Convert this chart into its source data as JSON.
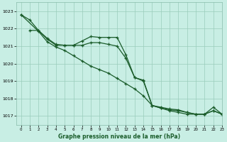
{
  "xlabel": "Graphe pression niveau de la mer (hPa)",
  "ylim": [
    1016.5,
    1023.5
  ],
  "xlim": [
    -0.5,
    23
  ],
  "yticks": [
    1017,
    1018,
    1019,
    1020,
    1021,
    1022,
    1023
  ],
  "xticks": [
    0,
    1,
    2,
    3,
    4,
    5,
    6,
    7,
    8,
    9,
    10,
    11,
    12,
    13,
    14,
    15,
    16,
    17,
    18,
    19,
    20,
    21,
    22,
    23
  ],
  "bg_color": "#c8eee4",
  "grid_color": "#99ccbb",
  "line_color": "#1a5c2a",
  "line1_x": [
    0,
    1,
    2,
    3,
    4,
    5,
    6,
    7,
    8,
    9,
    10,
    11,
    12,
    13,
    14,
    15,
    16,
    17,
    18,
    19,
    20,
    21,
    22,
    23
  ],
  "line1_y": [
    1022.8,
    1022.5,
    1021.9,
    1021.4,
    1021.05,
    1021.05,
    1021.05,
    1021.05,
    1021.2,
    1021.2,
    1021.1,
    1021.0,
    1020.3,
    1019.2,
    1019.0,
    1017.6,
    1017.45,
    1017.35,
    1017.3,
    1017.2,
    1017.1,
    1017.1,
    1017.3,
    1017.1
  ],
  "line2_x": [
    1,
    2,
    3,
    4,
    5,
    6,
    7,
    8,
    9,
    10,
    11,
    12,
    13,
    14,
    15,
    16,
    17,
    18,
    19,
    20,
    21,
    22,
    23
  ],
  "line2_y": [
    1021.9,
    1021.9,
    1021.45,
    1021.1,
    1021.05,
    1021.05,
    1021.3,
    1021.55,
    1021.5,
    1021.5,
    1021.5,
    1020.5,
    1019.2,
    1019.05,
    1017.6,
    1017.5,
    1017.4,
    1017.35,
    1017.2,
    1017.1,
    1017.1,
    1017.5,
    1017.1
  ],
  "line3_x": [
    0,
    2,
    3,
    4,
    5,
    6,
    7,
    8,
    9,
    10,
    11,
    12,
    13,
    14,
    15,
    16,
    17,
    18,
    19,
    20,
    21,
    22,
    23
  ],
  "line3_y": [
    1022.8,
    1021.85,
    1021.25,
    1020.95,
    1020.75,
    1020.45,
    1020.15,
    1019.85,
    1019.65,
    1019.45,
    1019.15,
    1018.85,
    1018.55,
    1018.15,
    1017.6,
    1017.45,
    1017.3,
    1017.2,
    1017.1,
    1017.1,
    1017.1,
    1017.3,
    1017.1
  ]
}
